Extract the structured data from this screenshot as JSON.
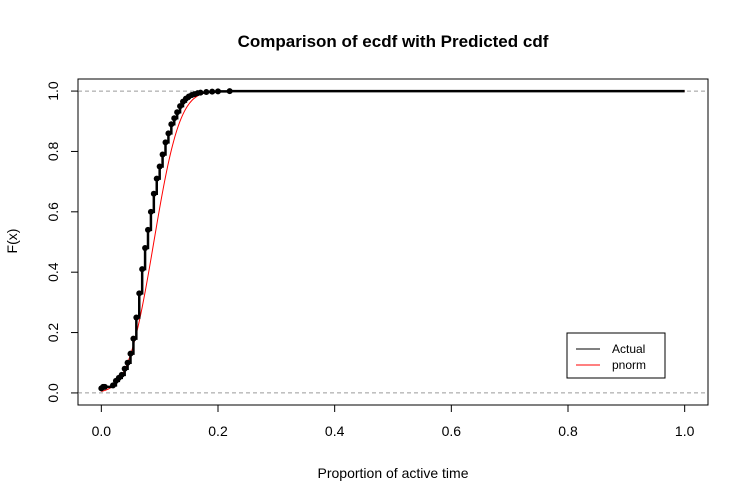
{
  "chart_data": {
    "type": "line",
    "title": "Comparison of ecdf with Predicted cdf",
    "xlabel": "Proportion of active time",
    "ylabel": "F(x)",
    "xlim": [
      -0.04,
      1.04
    ],
    "ylim": [
      -0.04,
      1.04
    ],
    "x_ticks": [
      0.0,
      0.2,
      0.4,
      0.6,
      0.8,
      1.0
    ],
    "x_tick_labels": [
      "0.0",
      "0.2",
      "0.4",
      "0.6",
      "0.8",
      "1.0"
    ],
    "y_ticks": [
      0.0,
      0.2,
      0.4,
      0.6,
      0.8,
      1.0
    ],
    "y_tick_labels": [
      "0.0",
      "0.2",
      "0.4",
      "0.6",
      "0.8",
      "1.0"
    ],
    "reference_lines": [
      0,
      1
    ],
    "grid": false,
    "legend": {
      "position": "bottom-right",
      "entries": [
        "Actual",
        "pnorm"
      ]
    },
    "series": [
      {
        "name": "Actual",
        "color": "#000000",
        "style": "step-points",
        "x": [
          0.0,
          0.003,
          0.006,
          0.02,
          0.025,
          0.03,
          0.035,
          0.04,
          0.045,
          0.05,
          0.055,
          0.06,
          0.065,
          0.07,
          0.075,
          0.08,
          0.085,
          0.09,
          0.095,
          0.1,
          0.105,
          0.11,
          0.115,
          0.12,
          0.125,
          0.13,
          0.135,
          0.14,
          0.145,
          0.15,
          0.155,
          0.16,
          0.165,
          0.17,
          0.18,
          0.19,
          0.2,
          0.22,
          1.0
        ],
        "y": [
          0.015,
          0.02,
          0.02,
          0.025,
          0.04,
          0.05,
          0.06,
          0.08,
          0.1,
          0.13,
          0.18,
          0.25,
          0.33,
          0.41,
          0.48,
          0.54,
          0.6,
          0.66,
          0.71,
          0.75,
          0.79,
          0.83,
          0.86,
          0.89,
          0.91,
          0.93,
          0.95,
          0.965,
          0.975,
          0.982,
          0.987,
          0.99,
          0.993,
          0.995,
          0.997,
          0.998,
          0.999,
          1.0,
          1.0
        ]
      },
      {
        "name": "pnorm",
        "color": "#ff0000",
        "style": "line",
        "mean": 0.09,
        "sd": 0.035,
        "x_range": [
          0.0,
          1.0
        ]
      }
    ]
  }
}
